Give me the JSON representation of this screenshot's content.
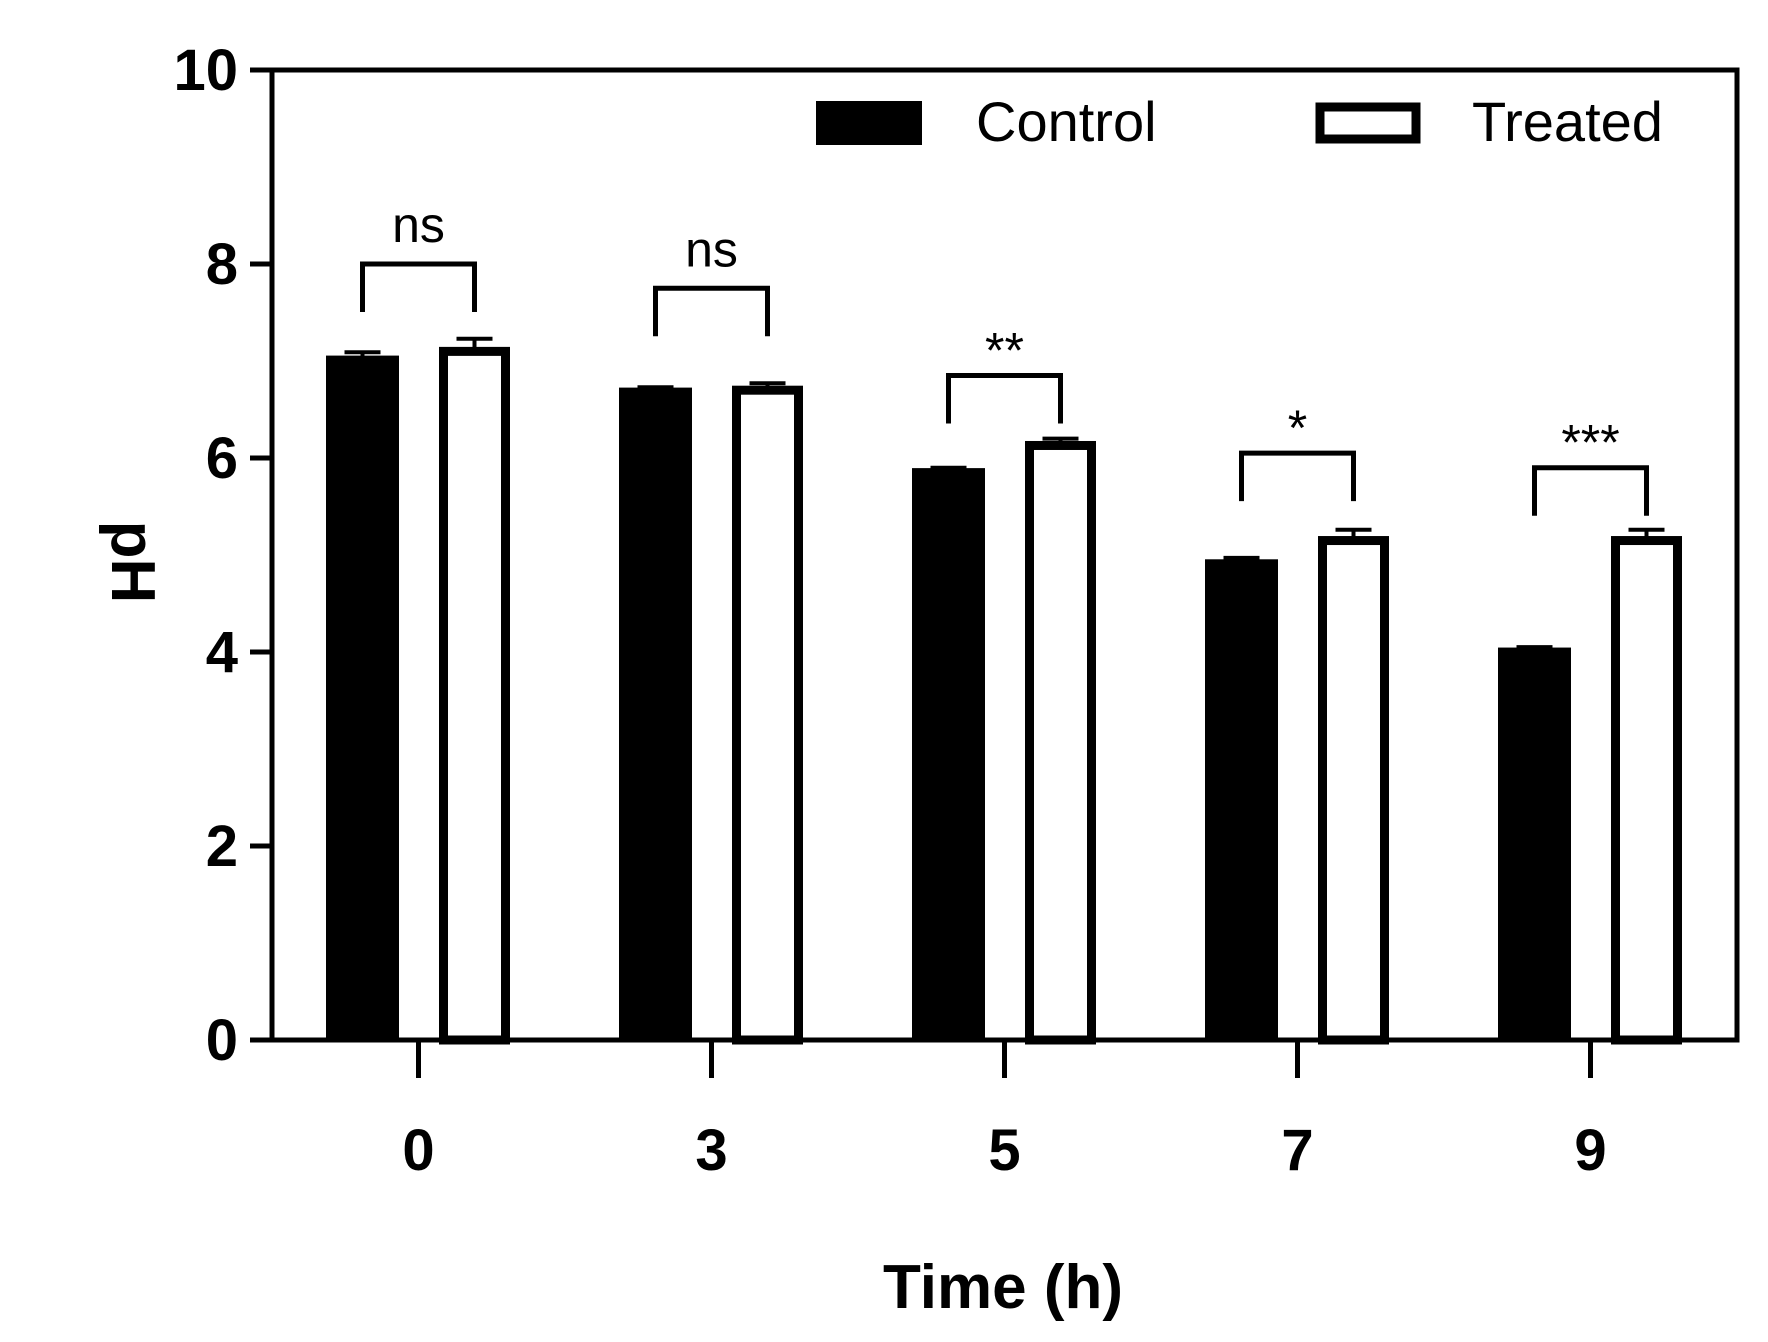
{
  "chart_data": {
    "type": "bar",
    "title": "",
    "xlabel": "Time (h)",
    "ylabel": "pH",
    "ylim": [
      0,
      10
    ],
    "yticks": [
      "0",
      "2",
      "4",
      "6",
      "8",
      "10"
    ],
    "categories": [
      "0",
      "3",
      "5",
      "7",
      "9"
    ],
    "series": [
      {
        "name": "Control",
        "fill": "#000000",
        "values": [
          7.03,
          6.7,
          5.87,
          4.93,
          4.02
        ],
        "errors": [
          0.06,
          0.03,
          0.03,
          0.04,
          0.03
        ]
      },
      {
        "name": "Treated",
        "fill": "#ffffff",
        "values": [
          7.13,
          6.73,
          6.16,
          5.18,
          5.18
        ],
        "errors": [
          0.1,
          0.04,
          0.04,
          0.08,
          0.08
        ]
      }
    ],
    "significance": [
      {
        "category": "0",
        "label": "ns",
        "level": 8.0
      },
      {
        "category": "3",
        "label": "ns",
        "level": 7.75
      },
      {
        "category": "5",
        "label": "**",
        "level": 6.85
      },
      {
        "category": "7",
        "label": "*",
        "level": 6.05
      },
      {
        "category": "9",
        "label": "***",
        "level": 5.9
      }
    ],
    "legend_position": "top-right",
    "grid": false
  }
}
